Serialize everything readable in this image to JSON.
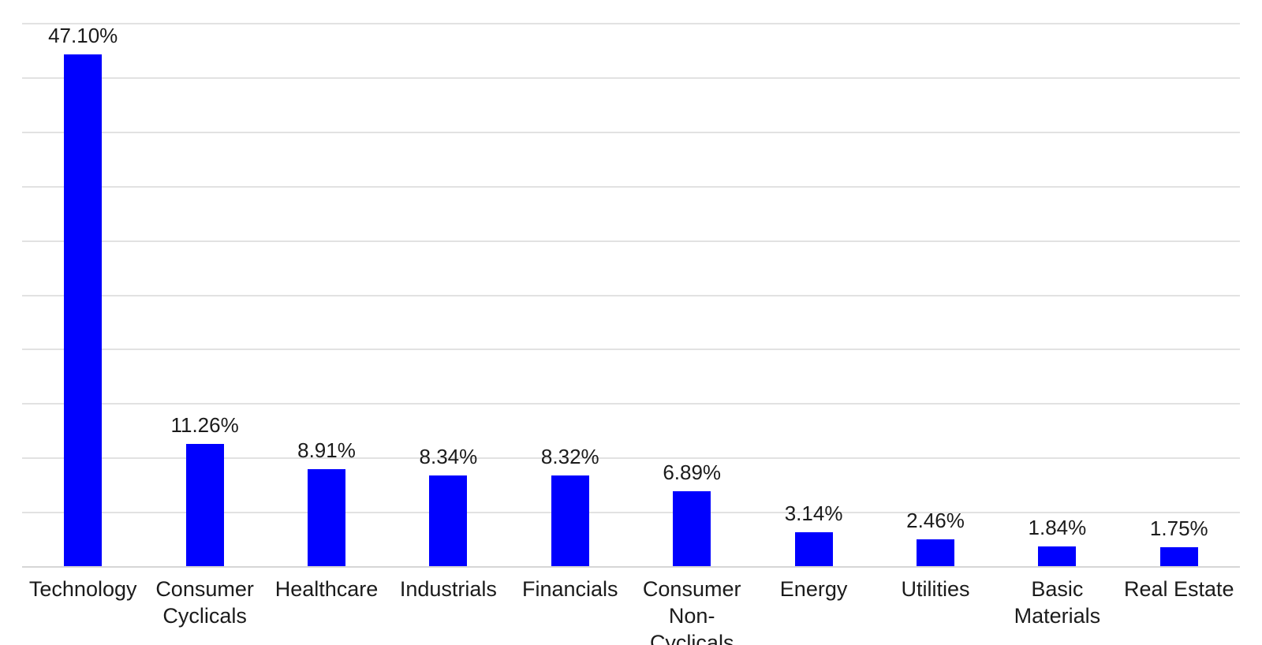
{
  "chart_data": {
    "type": "bar",
    "title": "",
    "xlabel": "",
    "ylabel": "",
    "categories": [
      "Technology",
      "Consumer Cyclicals",
      "Healthcare",
      "Industrials",
      "Financials",
      "Consumer Non-Cyclicals",
      "Energy",
      "Utilities",
      "Basic Materials",
      "Real Estate"
    ],
    "values": [
      47.1,
      11.26,
      8.91,
      8.34,
      8.32,
      6.89,
      3.14,
      2.46,
      1.84,
      1.75
    ],
    "data_labels": [
      "47.10%",
      "11.26%",
      "8.91%",
      "8.34%",
      "8.32%",
      "6.89%",
      "3.14%",
      "2.46%",
      "1.84%",
      "1.75%"
    ],
    "tick_wrap": [
      [
        "Technology"
      ],
      [
        "Consumer",
        "Cyclicals"
      ],
      [
        "Healthcare"
      ],
      [
        "Industrials"
      ],
      [
        "Financials"
      ],
      [
        "Consumer",
        "Non-Cyclicals"
      ],
      [
        "Energy"
      ],
      [
        "Utilities"
      ],
      [
        "Basic",
        "Materials"
      ],
      [
        "Real Estate"
      ]
    ],
    "ylim": [
      0,
      50
    ],
    "gridline_step": 5,
    "grid": true,
    "y_tick_labels_visible": false,
    "legend_position": "none",
    "colors": {
      "bar": "#0000fe",
      "gridline": "#e2e2e2",
      "axis_line": "#d6d6d6",
      "text": "#1b1b1b",
      "background": "#ffffff"
    }
  }
}
